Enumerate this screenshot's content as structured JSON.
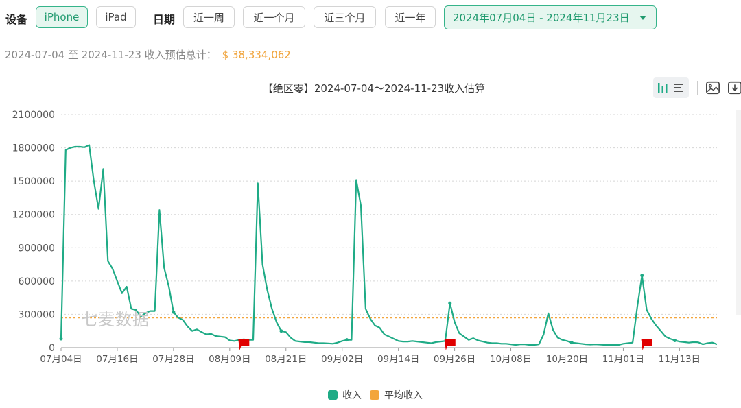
{
  "filters": {
    "device_label": "设备",
    "devices": [
      "iPhone",
      "iPad"
    ],
    "active_device": "iPhone",
    "date_label": "日期",
    "quick_ranges": [
      "近一周",
      "近一个月",
      "近三个月",
      "近一年"
    ],
    "date_range": "2024年07月04日 - 2024年11月23日"
  },
  "summary": {
    "text": "2024-07-04 至 2024-11-23 收入预估总计：",
    "total": "$ 38,334,062"
  },
  "watermark": "七麦数据",
  "colors": {
    "accent": "#1fab86",
    "average": "#f3a53b",
    "flag": "#e00000"
  },
  "toolbar_icons": [
    "bar-chart-icon",
    "list-icon",
    "image-icon",
    "download-icon"
  ],
  "chart_data": {
    "type": "line",
    "title": "【绝区零】2024-07-04～2024-11-23收入估算",
    "y_ticks": [
      "0",
      "300000",
      "600000",
      "900000",
      "1200000",
      "1500000",
      "1800000",
      "2100000"
    ],
    "ylim": [
      0,
      2100000
    ],
    "x_ticks": [
      "07月04日",
      "07月16日",
      "07月28日",
      "08月09日",
      "08月21日",
      "09月02日",
      "09月14日",
      "09月26日",
      "10月08日",
      "10月20日",
      "11月01日",
      "11月13日"
    ],
    "x_start": "2024-07-04",
    "x_end": "2024-11-23",
    "series": [
      {
        "name": "收入",
        "color": "#1fab86",
        "values": [
          80000,
          1780000,
          1800000,
          1810000,
          1810000,
          1805000,
          1825000,
          1500000,
          1250000,
          1610000,
          780000,
          710000,
          600000,
          490000,
          550000,
          350000,
          340000,
          280000,
          310000,
          330000,
          330000,
          1240000,
          720000,
          550000,
          320000,
          270000,
          250000,
          190000,
          150000,
          165000,
          140000,
          120000,
          125000,
          105000,
          100000,
          95000,
          65000,
          60000,
          70000,
          75000,
          70000,
          70000,
          1480000,
          750000,
          520000,
          350000,
          230000,
          150000,
          140000,
          90000,
          60000,
          55000,
          50000,
          50000,
          45000,
          40000,
          40000,
          38000,
          35000,
          45000,
          60000,
          70000,
          70000,
          1510000,
          1280000,
          350000,
          260000,
          200000,
          180000,
          120000,
          100000,
          80000,
          60000,
          55000,
          55000,
          60000,
          55000,
          50000,
          45000,
          40000,
          50000,
          55000,
          60000,
          400000,
          230000,
          130000,
          100000,
          70000,
          85000,
          65000,
          55000,
          45000,
          40000,
          40000,
          35000,
          35000,
          30000,
          25000,
          30000,
          30000,
          25000,
          25000,
          30000,
          120000,
          310000,
          160000,
          90000,
          70000,
          60000,
          45000,
          40000,
          35000,
          30000,
          28000,
          30000,
          28000,
          25000,
          25000,
          25000,
          25000,
          35000,
          40000,
          45000,
          370000,
          650000,
          340000,
          260000,
          200000,
          150000,
          100000,
          80000,
          65000,
          55000,
          50000,
          45000,
          50000,
          48000,
          30000,
          40000,
          45000,
          30000
        ]
      },
      {
        "name": "平均收入",
        "color": "#f3a53b",
        "values": [
          270000
        ]
      }
    ],
    "flag_dates": [
      "08月12日",
      "09月25日",
      "11月06日"
    ],
    "grid": true,
    "legend": "bottom-center",
    "legend_items": [
      "收入",
      "平均收入"
    ]
  }
}
